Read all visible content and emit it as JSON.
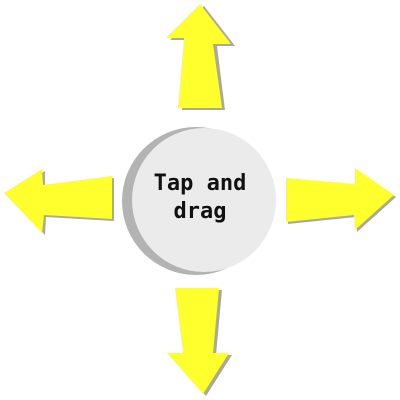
{
  "hint": {
    "line1": "Tap and",
    "line2": "drag"
  },
  "colors": {
    "arrow_fill": "#ffff2e",
    "arrow_shadow": "#a8a8a8",
    "knob_fill": "#ebebeb",
    "knob_shadow": "#b3b3b3",
    "text": "#111111"
  },
  "icons": {
    "up": "arrow-up-icon",
    "down": "arrow-down-icon",
    "left": "arrow-left-icon",
    "right": "arrow-right-icon"
  }
}
